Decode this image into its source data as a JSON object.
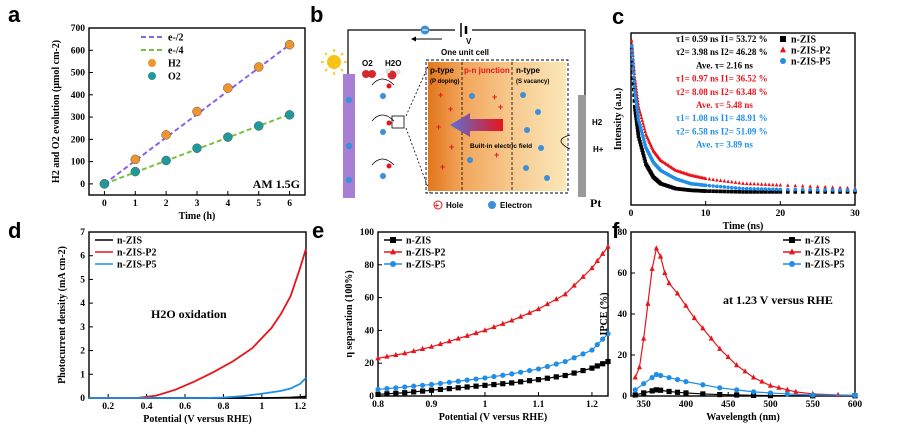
{
  "panels": {
    "a": "a",
    "b": "b",
    "c": "c",
    "d": "d",
    "e": "e",
    "f": "f"
  },
  "colors": {
    "black": "#000000",
    "red": "#e8141b",
    "blue": "#1e8ee8",
    "purple": "#8a63e8",
    "green": "#79c142",
    "orange": "#f0952b",
    "teal": "#1f9a9a"
  },
  "schematic": {
    "unit_label": "One unit cell",
    "voltage": "V",
    "o2": "O2",
    "h2o": "H2O",
    "h2": "H2",
    "hplus": "H+",
    "ptype": "p-type",
    "ptype_sub": "(P doping)",
    "pn": "p-n junction",
    "ntype": "n-type",
    "ntype_sub": "(S vacancy)",
    "field": "Built-in electric field",
    "pt": "Pt",
    "hole": "Hole",
    "electron": "Electron"
  },
  "chart_data": [
    {
      "panel": "a",
      "type": "scatter",
      "xlabel": "Time (h)",
      "ylabel": "H2 and O2 evolution (μmol cm-2)",
      "xlim": [
        -0.5,
        6.5
      ],
      "ylim": [
        -50,
        700
      ],
      "xticks": [
        0,
        1,
        2,
        3,
        4,
        5,
        6
      ],
      "yticks": [
        0,
        100,
        200,
        300,
        400,
        500,
        600,
        700
      ],
      "note": "AM 1.5G",
      "series": [
        {
          "name": "e-/2",
          "kind": "line",
          "color": "#8a63e8",
          "x": [
            0,
            6
          ],
          "y": [
            0,
            625
          ]
        },
        {
          "name": "e-/4",
          "kind": "line",
          "color": "#79c142",
          "x": [
            0,
            6
          ],
          "y": [
            0,
            312
          ]
        },
        {
          "name": "H2",
          "kind": "points",
          "color": "#f0952b",
          "x": [
            0,
            1,
            2,
            3,
            4,
            5,
            6
          ],
          "y": [
            0,
            110,
            220,
            325,
            430,
            525,
            625
          ]
        },
        {
          "name": "O2",
          "kind": "points",
          "color": "#1f9a9a",
          "x": [
            0,
            1,
            2,
            3,
            4,
            5,
            6
          ],
          "y": [
            0,
            55,
            105,
            160,
            210,
            260,
            310
          ]
        }
      ]
    },
    {
      "panel": "c",
      "type": "line",
      "xlabel": "Time (ns)",
      "ylabel": "Intensity (a.u.)",
      "xlim": [
        0,
        30
      ],
      "xticks": [
        0,
        10,
        20,
        30
      ],
      "series": [
        {
          "name": "n-ZIS",
          "color": "#000000",
          "x": [
            0.1,
            0.5,
            1,
            2,
            3,
            4,
            6,
            8,
            10,
            15,
            20,
            30
          ],
          "y": [
            0.95,
            0.6,
            0.42,
            0.25,
            0.17,
            0.13,
            0.1,
            0.09,
            0.085,
            0.08,
            0.08,
            0.08
          ]
        },
        {
          "name": "n-ZIS-P2",
          "color": "#e8141b",
          "x": [
            0.1,
            0.5,
            1,
            2,
            3,
            4,
            6,
            8,
            10,
            15,
            20,
            30
          ],
          "y": [
            1.0,
            0.78,
            0.6,
            0.43,
            0.33,
            0.27,
            0.21,
            0.18,
            0.16,
            0.13,
            0.12,
            0.1
          ]
        },
        {
          "name": "n-ZIS-P5",
          "color": "#1e8ee8",
          "x": [
            0.1,
            0.5,
            1,
            2,
            3,
            4,
            6,
            8,
            10,
            15,
            20,
            30
          ],
          "y": [
            0.97,
            0.7,
            0.52,
            0.35,
            0.26,
            0.21,
            0.16,
            0.13,
            0.12,
            0.1,
            0.095,
            0.09
          ]
        }
      ],
      "annotations": [
        {
          "text": "τ1= 0.59 ns   I1= 53.72 %",
          "color": "#000000"
        },
        {
          "text": "τ2= 3.98 ns   I2= 46.28 %",
          "color": "#000000"
        },
        {
          "text": "Ave. τ= 2.16 ns",
          "color": "#000000"
        },
        {
          "text": "τ1= 0.97 ns   I1= 36.52 %",
          "color": "#e8141b"
        },
        {
          "text": "τ2= 8.08 ns   I2= 63.48 %",
          "color": "#e8141b"
        },
        {
          "text": "Ave. τ= 5.48 ns",
          "color": "#e8141b"
        },
        {
          "text": "τ1= 1.08 ns   I1= 48.91 %",
          "color": "#1e8ee8"
        },
        {
          "text": "τ2= 6.58 ns   I2= 51.09 %",
          "color": "#1e8ee8"
        },
        {
          "text": "Ave. τ= 3.89 ns",
          "color": "#1e8ee8"
        }
      ]
    },
    {
      "panel": "d",
      "type": "line",
      "xlabel": "Potential (V versus RHE)",
      "ylabel": "Photocurrent density (mA cm-2)",
      "xlim": [
        0.1,
        1.23
      ],
      "ylim": [
        0,
        7
      ],
      "xticks": [
        0.2,
        0.4,
        0.6,
        0.8,
        1.0,
        1.2
      ],
      "yticks": [
        0,
        1,
        2,
        3,
        4,
        5,
        6,
        7
      ],
      "note": "H2O oxidation",
      "series": [
        {
          "name": "n-ZIS",
          "color": "#000000",
          "x": [
            0.1,
            0.4,
            0.6,
            0.8,
            1.0,
            1.1,
            1.15,
            1.2,
            1.23
          ],
          "y": [
            0,
            0,
            0,
            0,
            0,
            0.01,
            0.02,
            0.04,
            0.06
          ]
        },
        {
          "name": "n-ZIS-P2",
          "color": "#e8141b",
          "x": [
            0.1,
            0.35,
            0.45,
            0.55,
            0.65,
            0.75,
            0.85,
            0.95,
            1.05,
            1.1,
            1.15,
            1.2,
            1.23
          ],
          "y": [
            0,
            0,
            0.1,
            0.35,
            0.7,
            1.1,
            1.55,
            2.1,
            2.95,
            3.55,
            4.3,
            5.5,
            6.3
          ]
        },
        {
          "name": "n-ZIS-P5",
          "color": "#1e8ee8",
          "x": [
            0.1,
            0.7,
            0.8,
            0.9,
            1.0,
            1.1,
            1.15,
            1.2,
            1.23
          ],
          "y": [
            0,
            0,
            0.02,
            0.08,
            0.18,
            0.3,
            0.4,
            0.6,
            0.85
          ]
        }
      ]
    },
    {
      "panel": "e",
      "type": "line",
      "xlabel": "Potential (V versus RHE)",
      "ylabel": "η separation (100%)",
      "xlim": [
        0.8,
        1.23
      ],
      "ylim": [
        0,
        100
      ],
      "xticks": [
        0.8,
        0.9,
        1.0,
        1.1,
        1.2
      ],
      "yticks": [
        0,
        20,
        40,
        60,
        80,
        100
      ],
      "series": [
        {
          "name": "n-ZIS",
          "color": "#000000",
          "x": [
            0.8,
            0.85,
            0.9,
            0.95,
            1.0,
            1.05,
            1.1,
            1.15,
            1.2,
            1.23
          ],
          "y": [
            1,
            2,
            3.5,
            5,
            6.5,
            8,
            10,
            12.5,
            17,
            21
          ]
        },
        {
          "name": "n-ZIS-P2",
          "color": "#e8141b",
          "x": [
            0.8,
            0.85,
            0.9,
            0.95,
            1.0,
            1.05,
            1.1,
            1.15,
            1.2,
            1.23
          ],
          "y": [
            23,
            26,
            30,
            35,
            40,
            46,
            53,
            62,
            78,
            91
          ]
        },
        {
          "name": "n-ZIS-P5",
          "color": "#1e8ee8",
          "x": [
            0.8,
            0.85,
            0.9,
            0.95,
            1.0,
            1.05,
            1.1,
            1.15,
            1.2,
            1.23
          ],
          "y": [
            4,
            5.5,
            7,
            9,
            11,
            13.5,
            16.5,
            21,
            28,
            38
          ]
        }
      ]
    },
    {
      "panel": "f",
      "type": "line",
      "xlabel": "Wavelength (nm)",
      "ylabel": "IPCE (%)",
      "xlim": [
        335,
        600
      ],
      "ylim": [
        0,
        80
      ],
      "xticks": [
        350,
        400,
        450,
        500,
        550,
        600
      ],
      "yticks": [
        0,
        20,
        40,
        60,
        80
      ],
      "note": "at 1.23 V versus RHE",
      "series": [
        {
          "name": "n-ZIS",
          "color": "#000000",
          "x": [
            340,
            350,
            360,
            365,
            370,
            380,
            390,
            400,
            420,
            440,
            460,
            480,
            500,
            550,
            600
          ],
          "y": [
            0.5,
            1.5,
            2.5,
            3,
            2.8,
            2.2,
            1.8,
            1.5,
            1,
            0.7,
            0.5,
            0.3,
            0.2,
            0.1,
            0.1
          ]
        },
        {
          "name": "n-ZIS-P2",
          "color": "#e8141b",
          "x": [
            340,
            345,
            350,
            355,
            360,
            365,
            370,
            375,
            380,
            390,
            400,
            410,
            420,
            430,
            440,
            450,
            460,
            470,
            480,
            490,
            500,
            510,
            520,
            530,
            550,
            580,
            600
          ],
          "y": [
            9,
            14,
            28,
            45,
            62,
            72,
            68,
            60,
            55,
            50,
            44,
            38,
            33,
            28,
            23,
            19,
            15,
            12,
            9,
            7,
            5,
            4,
            3,
            2,
            1,
            0.5,
            0.3
          ]
        },
        {
          "name": "n-ZIS-P5",
          "color": "#1e8ee8",
          "x": [
            340,
            350,
            360,
            365,
            370,
            380,
            390,
            400,
            420,
            440,
            460,
            480,
            500,
            520,
            550,
            600
          ],
          "y": [
            3,
            6,
            9,
            10.5,
            10,
            9,
            8,
            7,
            5.5,
            4,
            3,
            2,
            1.5,
            1,
            0.5,
            0.3
          ]
        }
      ]
    }
  ]
}
